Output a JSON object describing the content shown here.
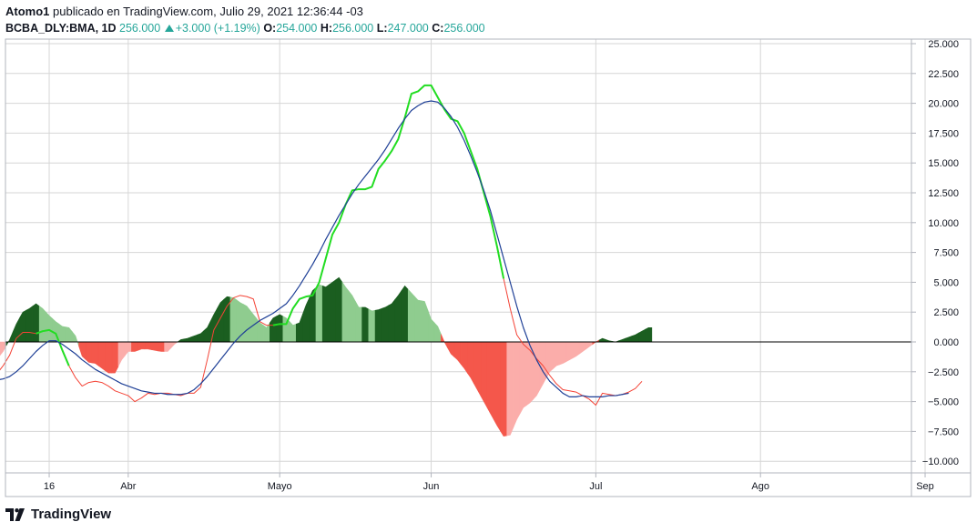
{
  "header": {
    "author": "Atomo1",
    "published_text": "publicado en TradingView.com, Julio 29, 2021 12:36:44 -03",
    "symbol": "BCBA_DLY:BMA, 1D",
    "price": "256.000",
    "change": "+3.000 (+1.19%)",
    "open_label": "O:",
    "open": "254.000",
    "high_label": "H:",
    "high": "256.000",
    "low_label": "L:",
    "low": "247.000",
    "close_label": "C:",
    "close": "256.000"
  },
  "footer": {
    "brand": "TradingView",
    "logo_icon": "tradingview-logo-icon"
  },
  "colors": {
    "macd": "#22dd22",
    "macd_below": "#f44336",
    "signal": "#1e3f96",
    "hist_dark_green": "#1b5e20",
    "hist_light_green": "#8fcc8f",
    "hist_dark_red": "#f4574b",
    "hist_light_red": "#fbadaa",
    "grid": "#d6d6d6",
    "zero": "#000000",
    "axis_text": "#131722"
  },
  "chart_data": {
    "type": "line",
    "ylim": [
      -11,
      25
    ],
    "y_ticks": [
      25,
      22.5,
      20,
      17.5,
      15,
      12.5,
      10,
      7.5,
      5,
      2.5,
      0,
      -2.5,
      -5,
      -7.5,
      -10
    ],
    "y_tick_labels": [
      "25.000",
      "22.500",
      "20.000",
      "17.500",
      "15.000",
      "12.500",
      "10.000",
      "7.500",
      "5.000",
      "2.500",
      "0.000",
      "−2.500",
      "−5.000",
      "−7.500",
      "−10.000"
    ],
    "x_ticks": [
      {
        "label": "16",
        "pos": 13
      },
      {
        "label": "Abr",
        "pos": 25
      },
      {
        "label": "Mayo",
        "pos": 48
      },
      {
        "label": "Jun",
        "pos": 71
      },
      {
        "label": "Jul",
        "pos": 96
      },
      {
        "label": "Ago",
        "pos": 121
      },
      {
        "label": "Sep",
        "pos": 146
      }
    ],
    "x_range": [
      3,
      154
    ],
    "series": [
      {
        "key": "macd",
        "values": [
          -1.3,
          -3.3,
          -4.3,
          -4.4,
          -3.6,
          -2.7,
          -2.0,
          -1.1,
          0.3,
          0.8,
          0.8,
          0.7,
          0.9,
          1.0,
          0.7,
          -0.7,
          -2.0,
          -3.0,
          -3.7,
          -3.4,
          -3.3,
          -3.4,
          -3.7,
          -4.1,
          -4.3,
          -4.5,
          -5.0,
          -4.7,
          -4.3,
          -4.4,
          -4.3,
          -4.3,
          -4.4,
          -4.5,
          -4.3,
          -4.3,
          -3.8,
          -1.5,
          1.0,
          2.0,
          3.0,
          3.7,
          3.9,
          3.8,
          3.6,
          1.7,
          1.4,
          1.4,
          1.5,
          1.5,
          2.8,
          3.6,
          3.8,
          3.9,
          5.0,
          7.0,
          9.0,
          10.0,
          11.5,
          12.7,
          12.8,
          12.8,
          13.0,
          14.5,
          15.2,
          16.0,
          17.0,
          18.8,
          20.8,
          21.0,
          21.5,
          21.5,
          20.5,
          19.5,
          18.7,
          18.5,
          17.5,
          16.0,
          14.5,
          12.5,
          10.5,
          8.0,
          5.3,
          2.8,
          0.6,
          -0.2,
          -0.7,
          -1.4,
          -2.0,
          -2.8,
          -3.5,
          -4.0,
          -4.1,
          -4.2,
          -4.5,
          -4.8,
          -5.3,
          -4.3,
          -4.4,
          -4.5,
          -4.4,
          -4.2,
          -3.9,
          -3.3
        ],
        "segments": [
          {
            "from": 0,
            "to": 11,
            "color_key": "macd_below"
          },
          {
            "from": 11,
            "to": 16,
            "color_key": "macd"
          },
          {
            "from": 16,
            "to": 47,
            "color_key": "macd_below"
          },
          {
            "from": 47,
            "to": 82,
            "color_key": "macd"
          },
          {
            "from": 82,
            "to": 111,
            "color_key": "macd_below"
          },
          {
            "from": 111,
            "to": 117,
            "color_key": "macd"
          }
        ]
      },
      {
        "key": "signal",
        "values": [
          -1.6,
          -2.4,
          -2.9,
          -3.1,
          -3.2,
          -3.2,
          -3.1,
          -2.9,
          -2.5,
          -2.0,
          -1.4,
          -0.8,
          -0.3,
          0.1,
          0.1,
          -0.2,
          -0.6,
          -1.0,
          -1.5,
          -1.9,
          -2.3,
          -2.6,
          -2.9,
          -3.2,
          -3.5,
          -3.7,
          -3.9,
          -4.1,
          -4.2,
          -4.3,
          -4.3,
          -4.4,
          -4.4,
          -4.4,
          -4.3,
          -4.0,
          -3.5,
          -2.9,
          -2.2,
          -1.5,
          -0.8,
          -0.1,
          0.5,
          1.0,
          1.4,
          1.8,
          2.1,
          2.4,
          2.8,
          3.2,
          3.9,
          4.7,
          5.6,
          6.5,
          7.5,
          8.6,
          9.6,
          10.6,
          11.5,
          12.4,
          13.2,
          13.9,
          14.6,
          15.3,
          16.1,
          17.0,
          17.9,
          18.7,
          19.4,
          19.8,
          20.1,
          20.2,
          20.1,
          19.6,
          18.9,
          18.0,
          16.9,
          15.6,
          14.2,
          12.7,
          11.0,
          9.0,
          7.0,
          5.0,
          3.0,
          1.2,
          -0.3,
          -1.5,
          -2.5,
          -3.3,
          -3.8,
          -4.3,
          -4.6,
          -4.6,
          -4.5,
          -4.6,
          -4.6,
          -4.6,
          -4.5,
          -4.5,
          -4.4,
          -4.3
        ],
        "start_index": 0,
        "color_key": "signal"
      }
    ],
    "histogram": {
      "values": [
        -1.2,
        -1.8,
        -1.5,
        -0.8,
        0.2,
        1.5,
        2.5,
        2.8,
        3.2,
        2.8,
        2.2,
        1.7,
        1.3,
        1.2,
        0.5,
        -1.2,
        -1.7,
        -1.8,
        -2.2,
        -2.6,
        -2.6,
        -1.5,
        -0.8,
        -0.8,
        -0.6,
        -0.6,
        -0.7,
        -0.8,
        -0.8,
        -0.2,
        0.2,
        0.3,
        0.5,
        0.7,
        1.2,
        2.3,
        3.3,
        3.8,
        3.7,
        3.3,
        3.0,
        2.3,
        1.6,
        1.2,
        2.0,
        2.3,
        2.0,
        1.4,
        1.6,
        3.1,
        4.3,
        4.8,
        4.6,
        5.0,
        5.4,
        4.6,
        3.9,
        2.9,
        2.9,
        2.6,
        2.7,
        2.9,
        3.2,
        3.9,
        4.7,
        4.1,
        3.5,
        3.4,
        1.9,
        1.3,
        0.0,
        -1.0,
        -1.5,
        -2.2,
        -3.0,
        -4.0,
        -5.0,
        -6.0,
        -7.0,
        -7.9,
        -7.8,
        -6.5,
        -5.5,
        -5.1,
        -4.5,
        -3.5,
        -2.5,
        -2.0,
        -1.8,
        -1.5,
        -1.2,
        -0.8,
        -0.4,
        0.0,
        0.3,
        0.1,
        0.0,
        0.2,
        0.4,
        0.6,
        0.9,
        1.2
      ],
      "start_index": 3,
      "colors": [
        "hist_dark_red",
        "hist_light_red",
        "hist_light_red",
        "hist_light_red",
        "hist_dark_green",
        "hist_dark_green",
        "hist_dark_green",
        "hist_dark_green",
        "hist_dark_green",
        "hist_light_green",
        "hist_light_green",
        "hist_light_green",
        "hist_light_green",
        "hist_light_green",
        "hist_light_green",
        "hist_dark_red",
        "hist_dark_red",
        "hist_dark_red",
        "hist_dark_red",
        "hist_dark_red",
        "hist_dark_red",
        "hist_light_red",
        "hist_light_red",
        "hist_dark_red",
        "hist_dark_red",
        "hist_dark_red",
        "hist_dark_red",
        "hist_dark_red",
        "hist_light_red",
        "hist_light_red",
        "hist_dark_green",
        "hist_dark_green",
        "hist_dark_green",
        "hist_dark_green",
        "hist_dark_green",
        "hist_dark_green",
        "hist_dark_green",
        "hist_dark_green",
        "hist_light_green",
        "hist_light_green",
        "hist_light_green",
        "hist_light_green",
        "hist_light_green",
        "hist_light_green",
        "hist_dark_green",
        "hist_dark_green",
        "hist_light_green",
        "hist_light_green",
        "hist_dark_green",
        "hist_dark_green",
        "hist_dark_green",
        "hist_light_green",
        "hist_dark_green",
        "hist_dark_green",
        "hist_dark_green",
        "hist_light_green",
        "hist_light_green",
        "hist_light_green",
        "hist_dark_green",
        "hist_light_green",
        "hist_dark_green",
        "hist_dark_green",
        "hist_dark_green",
        "hist_dark_green",
        "hist_dark_green",
        "hist_light_green",
        "hist_light_green",
        "hist_light_green",
        "hist_light_green",
        "hist_light_green",
        "hist_dark_red",
        "hist_dark_red",
        "hist_dark_red",
        "hist_dark_red",
        "hist_dark_red",
        "hist_dark_red",
        "hist_dark_red",
        "hist_dark_red",
        "hist_dark_red",
        "hist_dark_red",
        "hist_light_red",
        "hist_light_red",
        "hist_light_red",
        "hist_light_red",
        "hist_light_red",
        "hist_light_red",
        "hist_light_red",
        "hist_light_red",
        "hist_light_red",
        "hist_light_red",
        "hist_light_red",
        "hist_light_red",
        "hist_light_red",
        "hist_dark_red",
        "hist_dark_green",
        "hist_dark_green",
        "hist_dark_green",
        "hist_dark_green",
        "hist_dark_green",
        "hist_dark_green",
        "hist_dark_green",
        "hist_dark_green"
      ]
    }
  }
}
